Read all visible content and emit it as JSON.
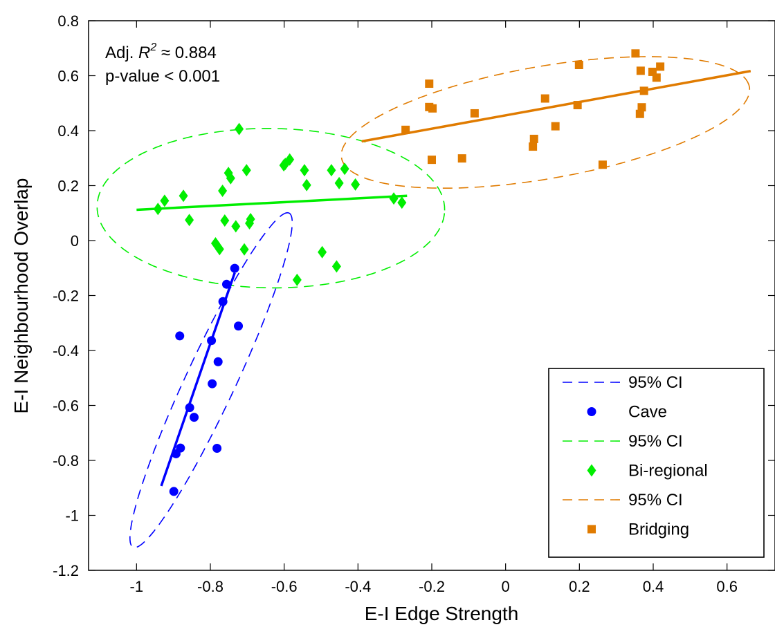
{
  "chart_data": {
    "type": "scatter",
    "title": "",
    "xlabel": "E-I Edge Strength",
    "ylabel": "E-I Neighbourhood Overlap",
    "xlim": [
      -1.13,
      0.73
    ],
    "ylim": [
      -1.2,
      0.8
    ],
    "xticks": [
      -1,
      -0.8,
      -0.6,
      -0.4,
      -0.2,
      0,
      0.2,
      0.4,
      0.6
    ],
    "xtick_labels": [
      "-1",
      "-0.8",
      "-0.6",
      "-0.4",
      "-0.2",
      "0",
      "0.2",
      "0.4",
      "0.6"
    ],
    "yticks": [
      0.8,
      0.6,
      0.4,
      0.2,
      0,
      -0.2,
      -0.4,
      -0.6,
      -0.8,
      -1,
      -1.2
    ],
    "ytick_labels": [
      "0.8",
      "0.6",
      "0.4",
      "0.2",
      "0",
      "-0.2",
      "-0.4",
      "-0.6",
      "-0.8",
      "-1",
      "-1.2"
    ],
    "grid": false,
    "legend_position": "bottom-right",
    "annotations": {
      "r2_prefix": "Adj. ",
      "r2_symbol": "R",
      "r2_exponent": "2",
      "r2_value": " ≈ 0.884",
      "pvalue": "p-value < 0.001"
    },
    "series": [
      {
        "name": "Cave",
        "marker": "circle",
        "color": "#0000ff",
        "points": [
          [
            -0.734,
            -0.101
          ],
          [
            -0.756,
            -0.159
          ],
          [
            -0.766,
            -0.222
          ],
          [
            -0.724,
            -0.311
          ],
          [
            -0.883,
            -0.347
          ],
          [
            -0.797,
            -0.364
          ],
          [
            -0.779,
            -0.441
          ],
          [
            -0.795,
            -0.521
          ],
          [
            -0.856,
            -0.608
          ],
          [
            -0.844,
            -0.643
          ],
          [
            -0.881,
            -0.755
          ],
          [
            -0.782,
            -0.756
          ],
          [
            -0.893,
            -0.776
          ],
          [
            -0.899,
            -0.913
          ]
        ],
        "fit": [
          [
            -0.933,
            -0.893
          ],
          [
            -0.734,
            -0.117
          ]
        ],
        "ci_ellipse": {
          "cx": -0.798,
          "cy": -0.508,
          "rx": 0.644,
          "ry": 0.07,
          "angle_deg": 71
        },
        "ci_label": "95% CI"
      },
      {
        "name": "Bi-regional",
        "marker": "diamond",
        "color": "#00ee00",
        "points": [
          [
            -0.722,
            0.406
          ],
          [
            -0.585,
            0.295
          ],
          [
            -0.601,
            0.274
          ],
          [
            -0.597,
            0.279
          ],
          [
            -0.751,
            0.246
          ],
          [
            -0.745,
            0.227
          ],
          [
            -0.702,
            0.256
          ],
          [
            -0.545,
            0.256
          ],
          [
            -0.472,
            0.256
          ],
          [
            -0.436,
            0.261
          ],
          [
            -0.451,
            0.209
          ],
          [
            -0.407,
            0.204
          ],
          [
            -0.539,
            0.202
          ],
          [
            -0.767,
            0.181
          ],
          [
            -0.873,
            0.163
          ],
          [
            -0.924,
            0.145
          ],
          [
            -0.942,
            0.115
          ],
          [
            -0.303,
            0.153
          ],
          [
            -0.281,
            0.138
          ],
          [
            -0.857,
            0.075
          ],
          [
            -0.761,
            0.073
          ],
          [
            -0.691,
            0.078
          ],
          [
            -0.694,
            0.063
          ],
          [
            -0.731,
            0.052
          ],
          [
            -0.786,
            -0.01
          ],
          [
            -0.775,
            -0.031
          ],
          [
            -0.708,
            -0.032
          ],
          [
            -0.497,
            -0.042
          ],
          [
            -0.458,
            -0.094
          ],
          [
            -0.565,
            -0.143
          ]
        ],
        "fit": [
          [
            -1.0,
            0.112
          ],
          [
            -0.267,
            0.163
          ]
        ],
        "ci_ellipse": {
          "cx": -0.636,
          "cy": 0.118,
          "rx": 0.471,
          "ry": 0.29,
          "angle_deg": -1
        },
        "ci_label": "95% CI"
      },
      {
        "name": "Bridging",
        "marker": "square",
        "color": "#e07b00",
        "points": [
          [
            0.352,
            0.681
          ],
          [
            0.419,
            0.633
          ],
          [
            0.366,
            0.618
          ],
          [
            0.199,
            0.639
          ],
          [
            0.398,
            0.614
          ],
          [
            0.409,
            0.593
          ],
          [
            -0.207,
            0.571
          ],
          [
            0.375,
            0.545
          ],
          [
            -0.207,
            0.486
          ],
          [
            -0.198,
            0.481
          ],
          [
            0.107,
            0.517
          ],
          [
            0.195,
            0.493
          ],
          [
            0.369,
            0.485
          ],
          [
            0.364,
            0.461
          ],
          [
            -0.084,
            0.463
          ],
          [
            0.135,
            0.416
          ],
          [
            -0.271,
            0.403
          ],
          [
            0.077,
            0.37
          ],
          [
            0.074,
            0.342
          ],
          [
            -0.2,
            0.294
          ],
          [
            -0.118,
            0.299
          ],
          [
            0.263,
            0.276
          ]
        ],
        "fit": [
          [
            -0.39,
            0.361
          ],
          [
            0.664,
            0.617
          ]
        ],
        "ci_ellipse": {
          "cx": 0.108,
          "cy": 0.43,
          "rx": 0.568,
          "ry": 0.202,
          "angle_deg": 14
        },
        "ci_label": "95% CI"
      }
    ],
    "legend": [
      {
        "type": "line",
        "series": 0,
        "label": "95% CI"
      },
      {
        "type": "marker",
        "series": 0,
        "label": "Cave"
      },
      {
        "type": "line",
        "series": 1,
        "label": "95% CI"
      },
      {
        "type": "marker",
        "series": 1,
        "label": "Bi-regional"
      },
      {
        "type": "line",
        "series": 2,
        "label": "95% CI"
      },
      {
        "type": "marker",
        "series": 2,
        "label": "Bridging"
      }
    ]
  }
}
